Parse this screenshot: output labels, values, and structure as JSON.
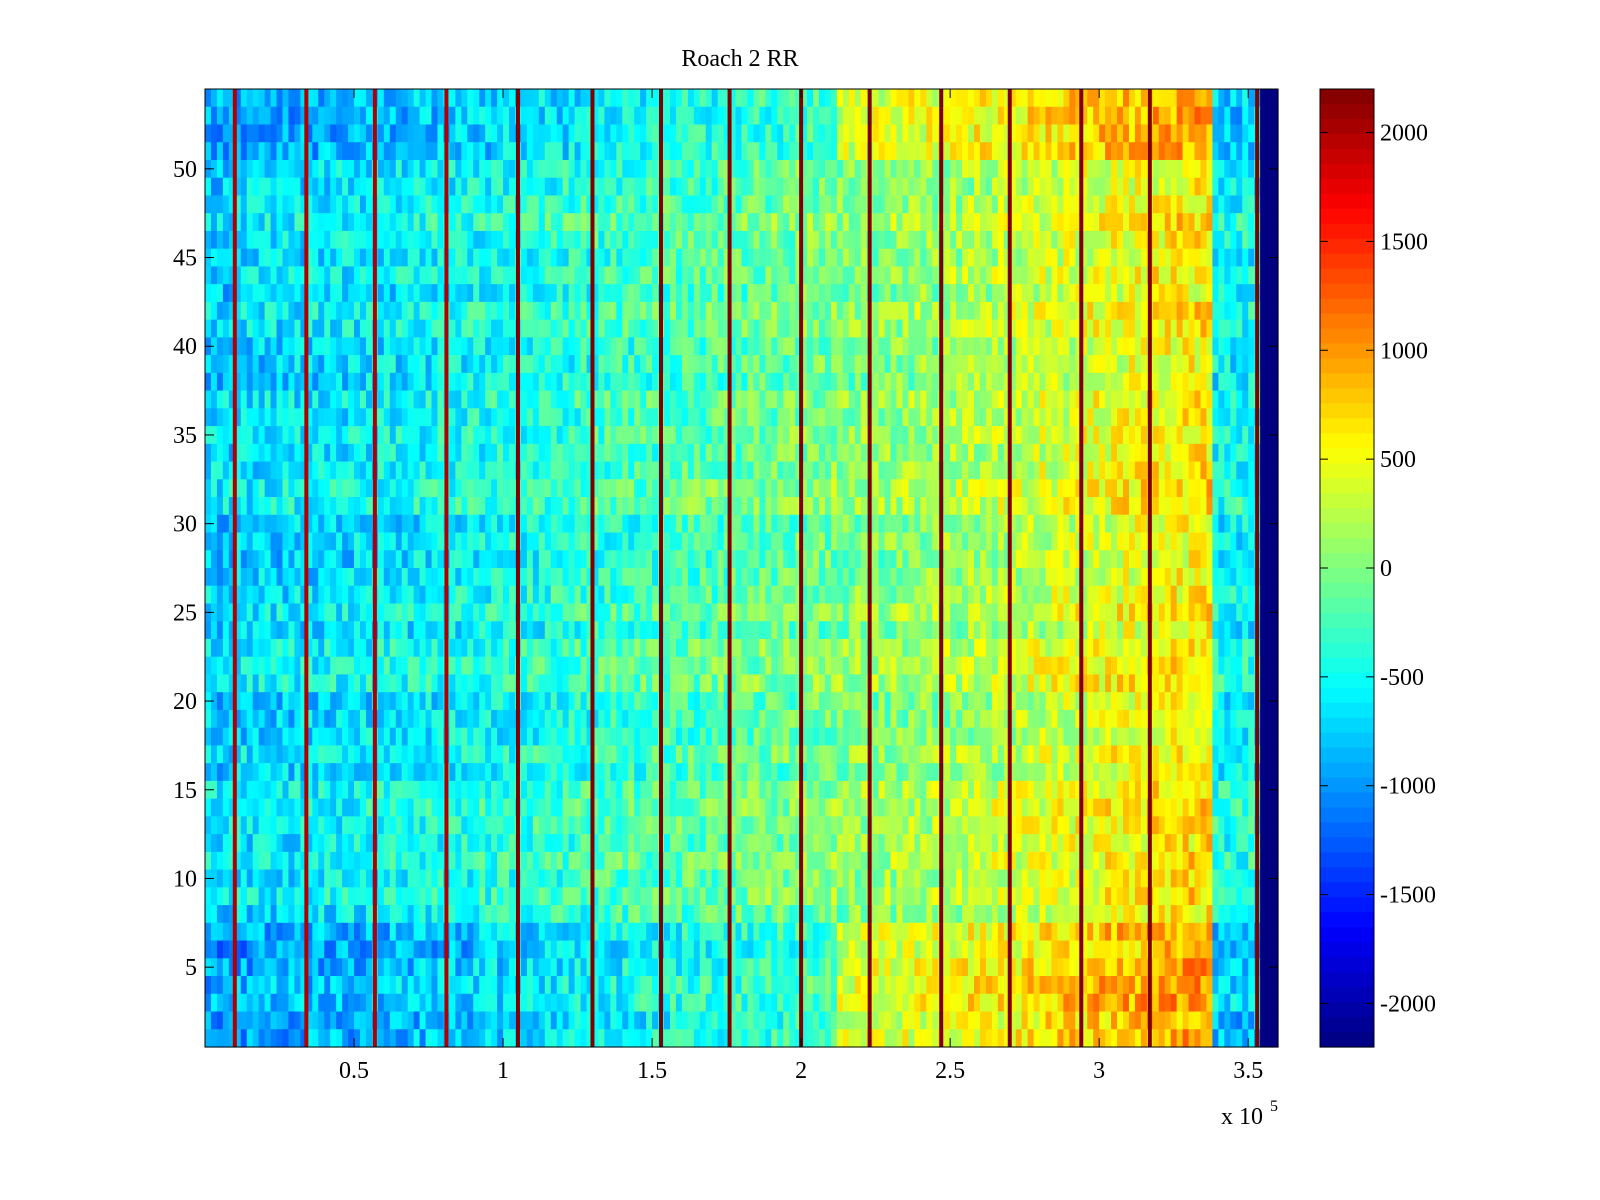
{
  "chart_data": {
    "type": "heatmap",
    "title": "Roach 2 RR",
    "xlabel": "",
    "ylabel": "",
    "x_multiplier_label": {
      "base": "x 10",
      "exponent": "5"
    },
    "xlim": [
      0,
      3.6
    ],
    "ylim": [
      0.5,
      54.5
    ],
    "x_ticks": [
      0.5,
      1,
      1.5,
      2,
      2.5,
      3,
      3.5
    ],
    "x_tick_labels": [
      "0.5",
      "1",
      "1.5",
      "2",
      "2.5",
      "3",
      "3.5"
    ],
    "y_ticks": [
      5,
      10,
      15,
      20,
      25,
      30,
      35,
      40,
      45,
      50
    ],
    "y_tick_labels": [
      "5",
      "10",
      "15",
      "20",
      "25",
      "30",
      "35",
      "40",
      "45",
      "50"
    ],
    "rows": 54,
    "colormap": "jet",
    "color_range": [
      -2200,
      2200
    ],
    "colorbar_ticks": [
      2000,
      1500,
      1000,
      500,
      0,
      -500,
      -1000,
      -1500,
      -2000
    ],
    "colorbar_tick_labels": [
      "2000",
      "1500",
      "1000",
      "500",
      "0",
      "-500",
      "-1000",
      "-1500",
      "-2000"
    ],
    "baseline_trend": [
      {
        "x": 0.0,
        "value": -700
      },
      {
        "x": 0.5,
        "value": -600
      },
      {
        "x": 1.0,
        "value": -450
      },
      {
        "x": 1.5,
        "value": -250
      },
      {
        "x": 2.0,
        "value": -50
      },
      {
        "x": 2.5,
        "value": 150
      },
      {
        "x": 3.0,
        "value": 450
      },
      {
        "x": 3.37,
        "value": 650
      },
      {
        "x": 3.38,
        "value": -500
      },
      {
        "x": 3.54,
        "value": -500
      },
      {
        "x": 3.55,
        "value": -2200
      },
      {
        "x": 3.6,
        "value": -2200
      }
    ],
    "vertical_stripes": [
      {
        "x": 0.1,
        "value": 2000
      },
      {
        "x": 0.34,
        "value": 2000
      },
      {
        "x": 0.57,
        "value": 2000
      },
      {
        "x": 0.81,
        "value": 2000
      },
      {
        "x": 1.05,
        "value": 2200
      },
      {
        "x": 1.3,
        "value": 2200
      },
      {
        "x": 1.53,
        "value": 2200
      },
      {
        "x": 1.76,
        "value": 2200
      },
      {
        "x": 2.0,
        "value": 2200
      },
      {
        "x": 2.23,
        "value": 2200
      },
      {
        "x": 2.47,
        "value": 2200
      },
      {
        "x": 2.7,
        "value": 2200
      },
      {
        "x": 2.94,
        "value": 2200
      },
      {
        "x": 3.17,
        "value": 2200
      },
      {
        "x": 3.53,
        "value": 2200
      }
    ]
  }
}
